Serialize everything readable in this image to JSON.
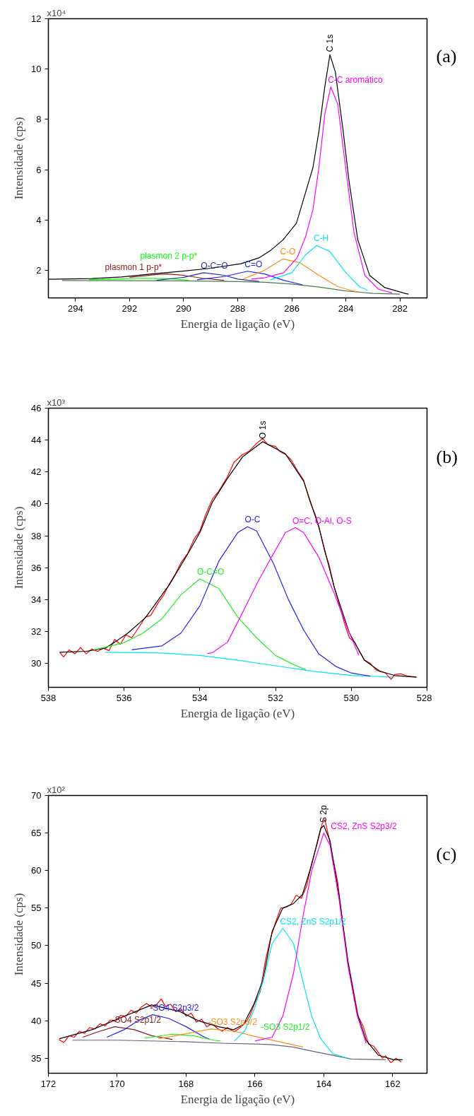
{
  "chart_data": [
    {
      "type": "line",
      "xlabel": "Energia de ligação (eV)",
      "ylabel": "Intensidade (cps)",
      "xlim": [
        295,
        281
      ],
      "xticks": [
        294,
        292,
        290,
        288,
        286,
        284,
        282
      ],
      "ylim": [
        0.9,
        12
      ],
      "yticks": [
        2,
        4,
        6,
        8,
        10,
        12
      ],
      "grid": false,
      "annotations": [
        "x10⁴",
        "(a)"
      ],
      "series": [
        {
          "color": "#4a7a4a",
          "x": [
            294.5,
            290,
            288,
            287,
            286,
            285,
            284,
            283,
            282
          ],
          "values": [
            1.59,
            1.58,
            1.55,
            1.52,
            1.45,
            1.33,
            1.18,
            1.08,
            1.05
          ]
        },
        {
          "name": "C 1s",
          "color": "#000000",
          "x": [
            295,
            293.4,
            292.3,
            291.2,
            290.09,
            288.99,
            287.88,
            287.2,
            286.77,
            286.33,
            285.83,
            285.22,
            285.0,
            284.78,
            284.59,
            284.39,
            284.11,
            283.89,
            283.56,
            283.12,
            282.56,
            281.79,
            281.68
          ],
          "values": [
            1.64,
            1.67,
            1.73,
            1.85,
            1.96,
            2.08,
            2.26,
            2.5,
            2.8,
            3.2,
            3.87,
            6.07,
            7.5,
            9.29,
            10.57,
            9.88,
            7.62,
            5.6,
            3.21,
            1.79,
            1.31,
            1.07,
            1.05
          ]
        },
        {
          "name": "plasmon 1 p-p*",
          "color": "#8b1a1a",
          "x": [
            292,
            291,
            290.6,
            290,
            289.3,
            288.5
          ],
          "values": [
            1.72,
            1.83,
            1.85,
            1.8,
            1.68,
            1.6
          ]
        },
        {
          "name": "plasmon 2 p-p*",
          "color": "#00ff00",
          "x": [
            293.5,
            292.5,
            291.5,
            290.5,
            289.8
          ],
          "values": [
            1.62,
            1.65,
            1.68,
            1.66,
            1.6
          ]
        },
        {
          "name": "O-C=O",
          "color": "#2b2b9e",
          "x": [
            291,
            290,
            289.26,
            288.5,
            288,
            287.2
          ],
          "values": [
            1.6,
            1.72,
            1.9,
            1.8,
            1.65,
            1.55
          ]
        },
        {
          "name": "C=O",
          "color": "#2222ee",
          "x": [
            289.5,
            288.5,
            287.64,
            287,
            286.3,
            285.6
          ],
          "values": [
            1.62,
            1.75,
            1.96,
            1.85,
            1.6,
            1.42
          ]
        },
        {
          "name": "C-O",
          "color": "#ff8c1a",
          "x": [
            287.8,
            287,
            286.33,
            285.7,
            285,
            284.3,
            283.6
          ],
          "values": [
            1.65,
            2.0,
            2.45,
            2.3,
            1.8,
            1.35,
            1.14
          ]
        },
        {
          "name": "C-H",
          "color": "#00e5ee",
          "x": [
            286.8,
            286,
            285.5,
            285.09,
            284.6,
            284,
            283.5,
            283.2
          ],
          "values": [
            1.62,
            1.9,
            2.6,
            2.98,
            2.75,
            1.9,
            1.35,
            1.2
          ]
        },
        {
          "name": "C-C aromático",
          "color": "#ff00ff",
          "x": [
            287.5,
            287,
            286.3,
            285.8,
            285.5,
            285.22,
            285.0,
            284.78,
            284.56,
            284.3,
            284.0,
            283.7,
            283.3,
            282.8,
            282.3
          ],
          "values": [
            1.65,
            1.7,
            1.9,
            2.5,
            3.3,
            4.4,
            6.07,
            8.2,
            9.29,
            8.6,
            6.0,
            3.5,
            1.8,
            1.25,
            1.1
          ]
        }
      ]
    },
    {
      "type": "line",
      "xlabel": "Energia de ligação (eV)",
      "ylabel": "Intensidade (cps)",
      "xlim": [
        538,
        528
      ],
      "xticks": [
        538,
        536,
        534,
        532,
        530,
        528
      ],
      "ylim": [
        28.5,
        46
      ],
      "yticks": [
        30,
        32,
        34,
        36,
        38,
        40,
        42,
        44,
        46
      ],
      "grid": false,
      "annotations": [
        "x10³",
        "(b)"
      ],
      "series": [
        {
          "color": "#00e5ee",
          "x": [
            536.5,
            535,
            534,
            533,
            532,
            531,
            530,
            529,
            528.9
          ],
          "values": [
            30.7,
            30.65,
            30.5,
            30.2,
            29.85,
            29.5,
            29.25,
            29.15,
            29.13
          ]
        },
        {
          "color": "#ff0000",
          "x": [
            537.7,
            537.6,
            537.45,
            537.3,
            537.15,
            537.0,
            536.85,
            536.7,
            536.55,
            536.4,
            536.25,
            536.1,
            535.95,
            535.8,
            535.6,
            535.44,
            535.3,
            535.1,
            534.95,
            534.8,
            534.65,
            534.5,
            534.32,
            534.15,
            534.0,
            533.85,
            533.67,
            533.5,
            533.27,
            533.1,
            532.87,
            532.7,
            532.5,
            532.34,
            532.2,
            532.0,
            531.9,
            531.74,
            531.6,
            531.4,
            531.26,
            531.1,
            530.95,
            530.86,
            530.7,
            530.6,
            530.45,
            530.3,
            530.15,
            530.05,
            529.9,
            529.8,
            529.65,
            529.5,
            529.35,
            529.25,
            529.1,
            528.95,
            528.85,
            528.7,
            528.5,
            528.28
          ],
          "values": [
            30.7,
            30.4,
            30.85,
            30.6,
            31.0,
            30.6,
            30.9,
            30.75,
            30.95,
            30.8,
            31.5,
            31.2,
            31.8,
            31.6,
            32.3,
            32.9,
            33.0,
            33.8,
            34.3,
            35.0,
            35.6,
            36.3,
            36.9,
            37.8,
            38.3,
            39.3,
            40.3,
            40.8,
            41.7,
            42.6,
            43.1,
            43.3,
            43.8,
            44.1,
            43.7,
            43.6,
            43.3,
            43.1,
            42.8,
            42.0,
            41.5,
            40.2,
            39.3,
            38.6,
            37.0,
            36.3,
            34.8,
            33.5,
            32.3,
            31.6,
            31.3,
            30.8,
            30.2,
            30.0,
            29.6,
            29.5,
            29.4,
            29.0,
            29.3,
            29.35,
            29.2,
            29.15
          ]
        },
        {
          "name": "O 1s",
          "color": "#000000",
          "x": [
            537.7,
            537.0,
            536.5,
            536.25,
            535.9,
            535.44,
            534.8,
            534.32,
            534.0,
            533.67,
            533.27,
            532.87,
            532.34,
            531.74,
            531.26,
            530.86,
            530.45,
            530.05,
            529.65,
            529.25,
            528.85,
            528.28
          ],
          "values": [
            30.7,
            30.76,
            30.95,
            31.33,
            31.9,
            32.86,
            34.95,
            36.86,
            38.2,
            40.1,
            41.6,
            42.95,
            43.9,
            43.14,
            41.43,
            38.57,
            34.76,
            31.9,
            30.19,
            29.52,
            29.24,
            29.14
          ]
        },
        {
          "name": "O-C=O",
          "color": "#22ee22",
          "x": [
            536.8,
            536,
            535.5,
            535,
            534.5,
            534,
            533.5,
            533,
            532.5,
            532,
            531.5,
            531.2
          ],
          "values": [
            30.85,
            31.3,
            31.9,
            32.8,
            34.3,
            35.3,
            34.7,
            32.9,
            31.6,
            30.5,
            29.9,
            29.6
          ]
        },
        {
          "name": "O-C",
          "color": "#2222ee",
          "x": [
            535.8,
            535,
            534.5,
            534,
            533.5,
            533,
            532.74,
            532.5,
            532.06,
            531.66,
            531.26,
            530.86,
            530.4,
            530,
            529.5
          ],
          "values": [
            30.85,
            31.1,
            31.9,
            33.6,
            36.4,
            38.2,
            38.57,
            38.3,
            36.29,
            34.0,
            32.1,
            30.6,
            29.8,
            29.4,
            29.2
          ]
        },
        {
          "name": "O=C, O-Al, O-S",
          "color": "#ff00ff",
          "x": [
            533.8,
            533.67,
            533.27,
            532.87,
            532.47,
            532.06,
            531.74,
            531.48,
            531.26,
            530.86,
            530.45,
            530.1,
            529.8
          ],
          "values": [
            30.62,
            30.67,
            31.33,
            33.2,
            35.1,
            36.86,
            38.2,
            38.51,
            38.2,
            36.67,
            34.38,
            32.2,
            30.5
          ]
        }
      ]
    },
    {
      "type": "line",
      "xlabel": "Energia de ligação (eV)",
      "ylabel": "Intensidade (cps)",
      "xlim": [
        172,
        161
      ],
      "xticks": [
        172,
        170,
        168,
        166,
        164,
        162
      ],
      "ylim": [
        33,
        70
      ],
      "yticks": [
        35,
        40,
        45,
        50,
        55,
        60,
        65,
        70
      ],
      "grid": false,
      "annotations": [
        "x10²",
        "(c)"
      ],
      "series": [
        {
          "color": "#6a5f80",
          "x": [
            171.3,
            170,
            168,
            167,
            166,
            165.5,
            164.9,
            164.4,
            163.2,
            162.2
          ],
          "values": [
            37.4,
            37.4,
            37.2,
            37.0,
            36.9,
            36.8,
            36.5,
            36.0,
            34.9,
            34.8
          ]
        },
        {
          "color": "#ff0000",
          "x": [
            171.7,
            171.55,
            171.4,
            171.25,
            171.1,
            170.95,
            170.8,
            170.65,
            170.5,
            170.35,
            170.2,
            170.05,
            169.9,
            169.75,
            169.6,
            169.45,
            169.3,
            169.15,
            169.0,
            168.85,
            168.72,
            168.6,
            168.45,
            168.3,
            168.15,
            168.0,
            167.85,
            167.7,
            167.55,
            167.4,
            167.25,
            167.1,
            166.95,
            166.8,
            166.6,
            166.45,
            166.3,
            166.15,
            166.0,
            165.85,
            165.7,
            165.55,
            165.4,
            165.25,
            165.1,
            164.95,
            164.8,
            164.65,
            164.5,
            164.35,
            164.2,
            164.05,
            163.97,
            163.85,
            163.75,
            163.6,
            163.45,
            163.3,
            163.15,
            163.0,
            162.85,
            162.7,
            162.55,
            162.45,
            162.3,
            162.2,
            162.05,
            161.9,
            161.75
          ],
          "values": [
            37.5,
            37.1,
            38.0,
            37.8,
            38.6,
            38.3,
            39.1,
            38.9,
            39.6,
            39.3,
            40.1,
            39.9,
            40.7,
            40.6,
            41.4,
            41.0,
            41.8,
            42.3,
            41.8,
            42.2,
            42.9,
            41.9,
            42.2,
            41.2,
            41.6,
            40.6,
            41.0,
            39.8,
            40.2,
            39.2,
            39.6,
            39.0,
            38.6,
            39.1,
            38.5,
            39.0,
            39.6,
            40.6,
            42.4,
            43.8,
            47.9,
            50.9,
            53.1,
            55.0,
            55.1,
            55.5,
            56.7,
            56.3,
            57.9,
            61.0,
            63.4,
            66.2,
            66.8,
            64.4,
            62.0,
            58.6,
            53.0,
            48.0,
            44.3,
            40.6,
            39.2,
            36.9,
            36.6,
            36.0,
            35.0,
            35.3,
            34.4,
            35.0,
            34.5
          ]
        },
        {
          "name": "S 2p",
          "color": "#000000",
          "x": [
            171.68,
            170.73,
            170.0,
            169.0,
            168.17,
            167.65,
            167.06,
            166.62,
            166.33,
            166.03,
            165.76,
            165.5,
            165.19,
            164.88,
            164.62,
            164.35,
            164.09,
            164.0,
            163.82,
            163.56,
            163.3,
            163.03,
            162.77,
            162.41,
            161.97,
            161.71
          ],
          "values": [
            37.6,
            38.8,
            40.2,
            42.1,
            41.2,
            40.0,
            39.2,
            38.8,
            39.5,
            42.2,
            45.5,
            51.9,
            55.0,
            55.6,
            56.8,
            60.8,
            65.6,
            66.0,
            64.0,
            56.8,
            47.9,
            41.0,
            37.4,
            35.4,
            34.8,
            34.8
          ]
        },
        {
          "name": "-SO4 S2p1/2",
          "color": "#8b1a1a",
          "x": [
            171,
            170.5,
            170.07,
            169.5,
            169,
            168.4
          ],
          "values": [
            37.8,
            38.6,
            39.2,
            38.8,
            38.0,
            37.5
          ]
        },
        {
          "name": "-SO4 S2p3/2",
          "color": "#2222ee",
          "x": [
            170.3,
            169.8,
            169.4,
            168.97,
            168.5,
            168,
            167.5,
            167.3
          ],
          "values": [
            37.8,
            38.8,
            40.0,
            40.8,
            40.3,
            39.2,
            37.9,
            37.5
          ]
        },
        {
          "name": "-SO3 S2p1/2",
          "color": "#22ee22",
          "x": [
            169.2,
            169,
            168.42,
            167.8,
            167.2,
            167
          ],
          "values": [
            37.7,
            37.8,
            38.2,
            38.0,
            37.4,
            37.3
          ]
        },
        {
          "name": "-SO3 S2p3/2",
          "color": "#ff8c1a",
          "x": [
            168.8,
            168.3,
            167.28,
            166.6,
            166,
            165.3,
            164.6
          ],
          "values": [
            37.6,
            38.0,
            38.9,
            38.6,
            37.9,
            37.2,
            36.5
          ]
        },
        {
          "name": "CS2, ZnS S2p1/2",
          "color": "#00e5ee",
          "x": [
            166.6,
            166.3,
            166.03,
            165.76,
            165.5,
            165.19,
            164.88,
            164.62,
            164.35,
            164.09,
            163.74,
            163.3
          ],
          "values": [
            37.3,
            38.6,
            41.4,
            45.3,
            50.3,
            52.3,
            50.3,
            45.5,
            40.6,
            37.6,
            35.6,
            35.0
          ]
        },
        {
          "name": "CS2, ZnS S2p3/2",
          "color": "#ff00ff",
          "x": [
            166,
            165.5,
            165.19,
            164.88,
            164.62,
            164.35,
            164.0,
            163.82,
            163.56,
            163.3,
            163.03,
            162.77
          ],
          "values": [
            37.3,
            37.8,
            40.6,
            46.3,
            53.5,
            60.0,
            65.0,
            63.4,
            56.3,
            47.4,
            40.7,
            37.0
          ]
        }
      ]
    }
  ]
}
